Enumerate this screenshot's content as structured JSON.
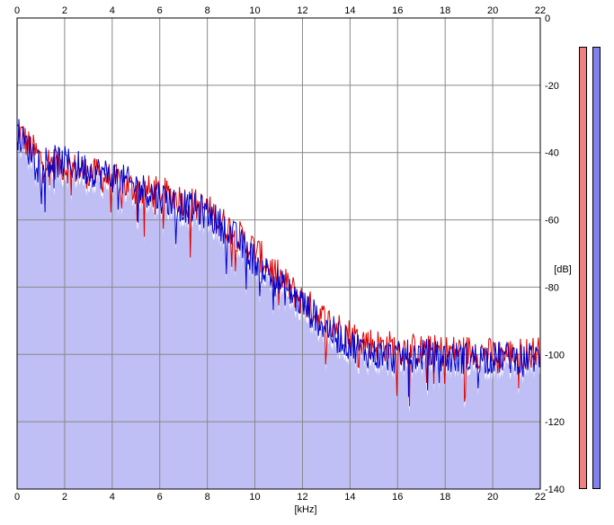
{
  "chart_data": {
    "type": "area",
    "xlabel": "[kHz]",
    "ylabel": "[dB]",
    "xlim": [
      0,
      22
    ],
    "ylim": [
      -140,
      0
    ],
    "x_ticks": [
      "0",
      "2",
      "4",
      "6",
      "8",
      "10",
      "12",
      "14",
      "16",
      "18",
      "20",
      "22"
    ],
    "y_ticks": [
      "0",
      "-20",
      "-40",
      "-60",
      "-80",
      "-100",
      "-120",
      "-140"
    ],
    "grid": true,
    "series": [
      {
        "color": "#dd0000",
        "x": [
          0,
          0.5,
          1,
          2,
          3,
          4,
          5,
          6,
          7,
          8,
          9,
          10,
          11,
          12,
          13,
          14,
          15,
          16,
          17,
          18,
          19,
          20,
          21,
          22
        ],
        "y": [
          -33,
          -38,
          -42,
          -44,
          -46,
          -48,
          -51,
          -52,
          -54,
          -57,
          -63,
          -69,
          -77,
          -84,
          -90,
          -94,
          -97,
          -98,
          -99,
          -99,
          -99,
          -100,
          -100,
          -99
        ]
      },
      {
        "color": "#0000cc",
        "x": [
          0,
          0.5,
          1,
          2,
          3,
          4,
          5,
          6,
          7,
          8,
          9,
          10,
          11,
          12,
          13,
          14,
          15,
          16,
          17,
          18,
          19,
          20,
          21,
          22
        ],
        "y": [
          -34,
          -39,
          -42,
          -43,
          -45,
          -47,
          -50,
          -53,
          -56,
          -58,
          -64,
          -72,
          -79,
          -85,
          -92,
          -97,
          -100,
          -101,
          -100,
          -101,
          -101,
          -101,
          -101,
          -101
        ]
      }
    ],
    "fill_color": "#bfbff5",
    "meters": [
      {
        "channel": "left",
        "color": "#f08080"
      },
      {
        "channel": "right",
        "color": "#8080f0"
      }
    ]
  }
}
